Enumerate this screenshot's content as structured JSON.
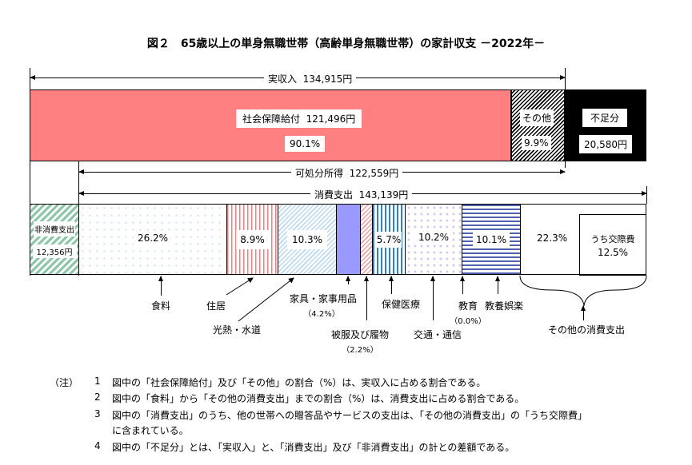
{
  "title": "図２　65歳以上の単身無職世帯（高齢単身無職世帯）の家計収支 －2022年－",
  "income": {
    "label": "実収入",
    "value": "134,915円",
    "social_security": {
      "label": "社会保障給付",
      "value": "121,496円",
      "pct": "90.1%"
    },
    "other": {
      "label": "その他",
      "pct": "9.9%"
    },
    "deficit": {
      "label": "不足分",
      "value": "20,580円"
    }
  },
  "disposable": {
    "label": "可処分所得",
    "value": "122,559円"
  },
  "consumption": {
    "label": "消費支出",
    "value": "143,139円"
  },
  "non_consumption": {
    "label": "非消費支出",
    "value": "12,356円"
  },
  "segments": [
    {
      "label": "食料",
      "pct": "26.2%"
    },
    {
      "label": "住居",
      "pct": "8.9%"
    },
    {
      "label": "光熱・水道",
      "pct": "10.3%"
    },
    {
      "label": "家具・家事用品",
      "pct": "（4.2%）"
    },
    {
      "label": "被服及び履物",
      "pct": "（2.2%）"
    },
    {
      "label": "保健医療",
      "pct": "5.7%"
    },
    {
      "label": "交通・通信",
      "pct": "10.2%"
    },
    {
      "label": "教育",
      "pct": "（0.0%）"
    },
    {
      "label": "教養娯楽",
      "pct": "10.1%"
    },
    {
      "label": "その他の消費支出",
      "pct": "22.3%",
      "sub_label": "うち交際費",
      "sub_pct": "12.5%"
    }
  ],
  "notes": {
    "head": "（注）",
    "items": [
      {
        "n": "1",
        "text": "図中の「社会保障給付」及び「その他」の割合（%）は、実収入に占める割合である。"
      },
      {
        "n": "2",
        "text": "図中の「食料」から「その他の消費支出」までの割合（%）は、消費支出に占める割合である。"
      },
      {
        "n": "3",
        "text": "図中の「消費支出」のうち、他の世帯への贈答品やサービスの支出は、「その他の消費支出」の「うち交際費」",
        "text2": "に含まれている。"
      },
      {
        "n": "4",
        "text": "図中の「不足分」とは、「実収入」と、「消費支出」及び「非消費支出」の計との差額である。"
      }
    ]
  }
}
